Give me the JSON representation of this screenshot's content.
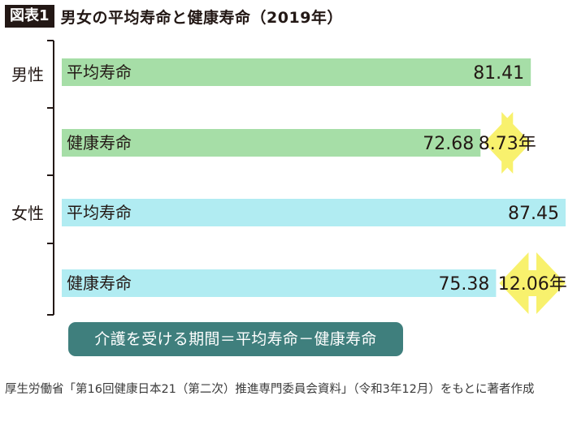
{
  "header": {
    "figure_tag": "図表1",
    "title": "男女の平均寿命と健康寿命（2019年）"
  },
  "colors": {
    "male_bar": "#a6dea7",
    "female_bar": "#b1ecf2",
    "gap_arrow": "#f8f16d",
    "formula_box": "#3f7f7d",
    "axis": "#231815"
  },
  "chart_data": {
    "type": "bar",
    "orientation": "horizontal",
    "title": "男女の平均寿命と健康寿命（2019年）",
    "xlim": [
      0,
      87.45
    ],
    "groups": [
      {
        "name": "男性",
        "bars": [
          {
            "label": "平均寿命",
            "value": 81.41,
            "value_label": "81.41"
          },
          {
            "label": "健康寿命",
            "value": 72.68,
            "value_label": "72.68"
          }
        ],
        "gap": {
          "value": 8.73,
          "label": "8.73年"
        }
      },
      {
        "name": "女性",
        "bars": [
          {
            "label": "平均寿命",
            "value": 87.45,
            "value_label": "87.45"
          },
          {
            "label": "健康寿命",
            "value": 75.38,
            "value_label": "75.38"
          }
        ],
        "gap": {
          "value": 12.06,
          "label": "12.06年"
        }
      }
    ],
    "annotation": "介護を受ける期間＝平均寿命－健康寿命"
  },
  "source": "厚生労働省「第16回健康日本21（第二次）推進専門委員会資料」（令和3年12月）をもとに著者作成"
}
